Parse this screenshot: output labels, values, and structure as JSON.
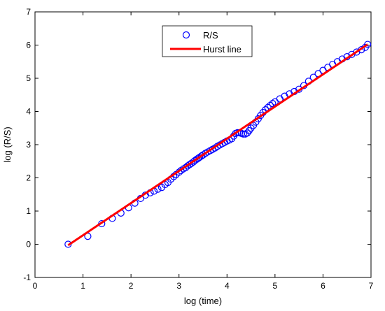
{
  "chart_data": {
    "type": "scatter",
    "xlabel": "log (time)",
    "ylabel": "log (R/S)",
    "xlim": [
      0,
      7
    ],
    "ylim": [
      -1,
      7
    ],
    "xticks": [
      "0",
      "1",
      "2",
      "3",
      "4",
      "5",
      "6",
      "7"
    ],
    "yticks": [
      "-1",
      "0",
      "1",
      "2",
      "3",
      "4",
      "5",
      "6",
      "7"
    ],
    "grid": false,
    "legend_position": "top-center",
    "series": [
      {
        "name": "R/S",
        "kind": "markers",
        "marker": "open-circle",
        "color": "#0000ff",
        "points": [
          [
            0.69,
            0.0
          ],
          [
            1.1,
            0.24
          ],
          [
            1.39,
            0.62
          ],
          [
            1.61,
            0.78
          ],
          [
            1.79,
            0.94
          ],
          [
            1.95,
            1.1
          ],
          [
            2.08,
            1.24
          ],
          [
            2.2,
            1.38
          ],
          [
            2.3,
            1.48
          ],
          [
            2.4,
            1.55
          ],
          [
            2.48,
            1.6
          ],
          [
            2.56,
            1.66
          ],
          [
            2.64,
            1.71
          ],
          [
            2.71,
            1.8
          ],
          [
            2.77,
            1.86
          ],
          [
            2.83,
            1.96
          ],
          [
            2.89,
            2.04
          ],
          [
            2.94,
            2.1
          ],
          [
            3.0,
            2.17
          ],
          [
            3.04,
            2.22
          ],
          [
            3.09,
            2.27
          ],
          [
            3.14,
            2.31
          ],
          [
            3.18,
            2.36
          ],
          [
            3.22,
            2.4
          ],
          [
            3.26,
            2.44
          ],
          [
            3.3,
            2.48
          ],
          [
            3.33,
            2.52
          ],
          [
            3.37,
            2.56
          ],
          [
            3.4,
            2.59
          ],
          [
            3.43,
            2.62
          ],
          [
            3.47,
            2.66
          ],
          [
            3.5,
            2.69
          ],
          [
            3.55,
            2.74
          ],
          [
            3.6,
            2.78
          ],
          [
            3.65,
            2.82
          ],
          [
            3.7,
            2.86
          ],
          [
            3.75,
            2.9
          ],
          [
            3.8,
            2.95
          ],
          [
            3.85,
            2.99
          ],
          [
            3.9,
            3.03
          ],
          [
            3.95,
            3.07
          ],
          [
            4.0,
            3.11
          ],
          [
            4.05,
            3.14
          ],
          [
            4.1,
            3.18
          ],
          [
            4.14,
            3.26
          ],
          [
            4.18,
            3.34
          ],
          [
            4.22,
            3.36
          ],
          [
            4.26,
            3.36
          ],
          [
            4.3,
            3.34
          ],
          [
            4.34,
            3.32
          ],
          [
            4.38,
            3.32
          ],
          [
            4.42,
            3.35
          ],
          [
            4.46,
            3.42
          ],
          [
            4.5,
            3.5
          ],
          [
            4.55,
            3.58
          ],
          [
            4.6,
            3.68
          ],
          [
            4.65,
            3.78
          ],
          [
            4.7,
            3.88
          ],
          [
            4.75,
            3.97
          ],
          [
            4.8,
            4.05
          ],
          [
            4.85,
            4.12
          ],
          [
            4.9,
            4.18
          ],
          [
            4.95,
            4.24
          ],
          [
            5.0,
            4.29
          ],
          [
            5.1,
            4.38
          ],
          [
            5.2,
            4.46
          ],
          [
            5.3,
            4.53
          ],
          [
            5.4,
            4.6
          ],
          [
            5.5,
            4.67
          ],
          [
            5.6,
            4.78
          ],
          [
            5.7,
            4.91
          ],
          [
            5.8,
            5.03
          ],
          [
            5.9,
            5.14
          ],
          [
            6.0,
            5.24
          ],
          [
            6.1,
            5.33
          ],
          [
            6.2,
            5.42
          ],
          [
            6.3,
            5.5
          ],
          [
            6.4,
            5.58
          ],
          [
            6.5,
            5.65
          ],
          [
            6.6,
            5.72
          ],
          [
            6.7,
            5.79
          ],
          [
            6.8,
            5.86
          ],
          [
            6.88,
            5.93
          ],
          [
            6.93,
            6.02
          ]
        ]
      },
      {
        "name": "Hurst line",
        "kind": "line",
        "color": "#ff0000",
        "points": [
          [
            0.69,
            -0.03
          ],
          [
            6.93,
            6.02
          ]
        ]
      }
    ]
  }
}
